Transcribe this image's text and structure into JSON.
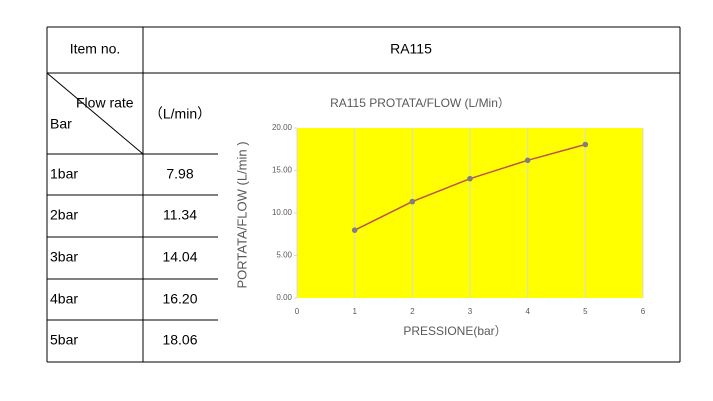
{
  "table": {
    "header": [
      "Item no.",
      "RA115"
    ],
    "diag_top": "Flow rate",
    "diag_bottom": "Bar",
    "unit": "（L/min）",
    "rows": [
      [
        "1bar",
        "7.98"
      ],
      [
        "2bar",
        "11.34"
      ],
      [
        "3bar",
        "14.04"
      ],
      [
        "4bar",
        "16.20"
      ],
      [
        "5bar",
        "18.06"
      ]
    ]
  },
  "chart_data": {
    "type": "line",
    "title": "RA115   PROTATA/FLOW (L/Min）",
    "x_label": "PRESSIONE(bar）",
    "y_label": "PORTATA/FLOW (L/min )",
    "x": [
      1,
      2,
      3,
      4,
      5
    ],
    "series": [
      {
        "name": "RA115",
        "color": "#c0504d",
        "marker_color": "#7f7f7f",
        "values": [
          7.98,
          11.34,
          14.04,
          16.2,
          18.06
        ]
      }
    ],
    "xlim": [
      0,
      6
    ],
    "xticks": [
      0,
      1,
      2,
      3,
      4,
      5,
      6
    ],
    "ylim": [
      0,
      20
    ],
    "yticks": [
      {
        "value": 0,
        "label": "0.00"
      },
      {
        "value": 5,
        "label": "5.00"
      },
      {
        "value": 10,
        "label": "10.00"
      },
      {
        "value": 15,
        "label": "15.00"
      },
      {
        "value": 20,
        "label": "20.00"
      }
    ],
    "background": "#ffff00",
    "grid": true
  }
}
